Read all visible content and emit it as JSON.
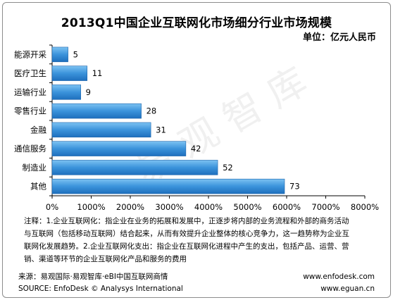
{
  "title": "2013Q1中国企业互联网化市场细分行业市场规模",
  "unit": "单位：亿元人民币",
  "watermark": "易观智库",
  "chart_data": {
    "type": "bar",
    "orientation": "horizontal",
    "categories": [
      "能源开采",
      "医疗卫生",
      "运输行业",
      "零售行业",
      "金融",
      "通信服务",
      "制造业",
      "其他"
    ],
    "values": [
      5,
      11,
      9,
      28,
      31,
      42,
      52,
      73
    ],
    "xlim": [
      0,
      8000
    ],
    "xticks": [
      "0%",
      "1000%",
      "2000%",
      "3000%",
      "4000%",
      "5000%",
      "6000%",
      "7000%",
      "8000%"
    ],
    "bar_color": "#2f87d4",
    "grid": false,
    "legend": "none"
  },
  "notes": [
    "注释：1.企业互联网化：指企业在业务的拓展和发展中，正逐步将内部的业务流程和外部的商务活动",
    "与互联网（包括移动互联网）结合起来，从而有效提升企业整体的核心竞争力，这一趋势称为企业互",
    "联网化发展趋势。2.企业互联网化支出：指企业在互联网化进程中产生的支出，包括产品、运营、营",
    "销、渠道等环节的企业互联网化产品和服务的费用"
  ],
  "footer": {
    "source_cn": "来源：易观国际·易观智库·eBI中国互联网商情",
    "source_en": "SOURCE: EnfoDesk © Analysys International",
    "url1": "www.enfodesk.com",
    "url2": "www.eguan.cn"
  }
}
